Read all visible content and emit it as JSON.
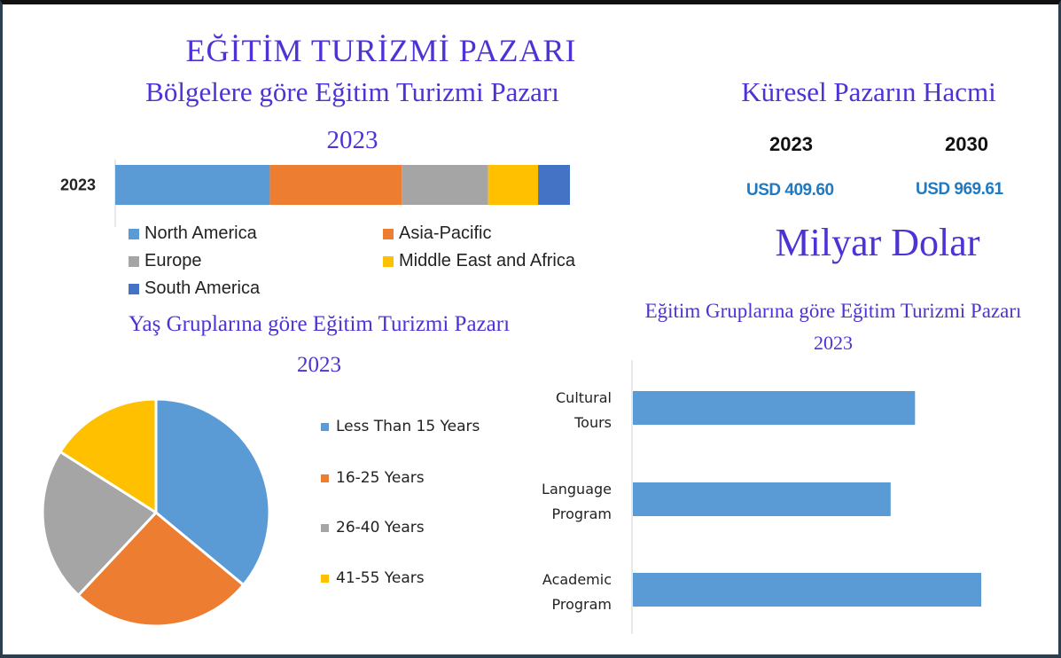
{
  "titles": {
    "main": "EĞİTİM TURİZMİ PAZARI",
    "subtitle": "Bölgelere göre Eğitim Turizmi Pazarı",
    "subtitle_year": "2023",
    "market_title": "Küresel Pazarın Hacmi",
    "unit": "Milyar Dolar",
    "age_title": "Yaş Gruplarına göre Eğitim Turizmi Pazarı",
    "age_year": "2023",
    "edu_title": "Eğitim Gruplarına göre Eğitim Turizmi Pazarı",
    "edu_year": "2023"
  },
  "market": {
    "years": [
      "2023",
      "2030"
    ],
    "values": [
      "USD 409.60",
      "USD 969.61"
    ],
    "value_color": "#1f7ac2"
  },
  "chart_data": [
    {
      "type": "bar",
      "orientation": "horizontal",
      "stacked": true,
      "categories": [
        "2023"
      ],
      "series": [
        {
          "name": "North America",
          "values": [
            34
          ],
          "color": "#5b9bd5"
        },
        {
          "name": "Asia-Pacific",
          "values": [
            29
          ],
          "color": "#ed7d31"
        },
        {
          "name": "Europe",
          "values": [
            19
          ],
          "color": "#a5a5a5"
        },
        {
          "name": "Middle East and Africa",
          "values": [
            11
          ],
          "color": "#ffc000"
        },
        {
          "name": "South America",
          "values": [
            7
          ],
          "color": "#4472c4"
        }
      ],
      "legend_position": "bottom"
    },
    {
      "type": "pie",
      "labels": [
        "Less Than 15 Years",
        "16-25 Years",
        "26-40 Years",
        "41-55 Years"
      ],
      "values": [
        36,
        26,
        22,
        16
      ],
      "colors": [
        "#5b9bd5",
        "#ed7d31",
        "#a5a5a5",
        "#ffc000"
      ],
      "legend_position": "right"
    },
    {
      "type": "bar",
      "orientation": "horizontal",
      "categories": [
        [
          "Cultural",
          "Tours"
        ],
        [
          "Language",
          "Program"
        ],
        [
          "Academic",
          "Program"
        ]
      ],
      "values": [
        81,
        74,
        100
      ],
      "color": "#5b9bd5"
    }
  ]
}
